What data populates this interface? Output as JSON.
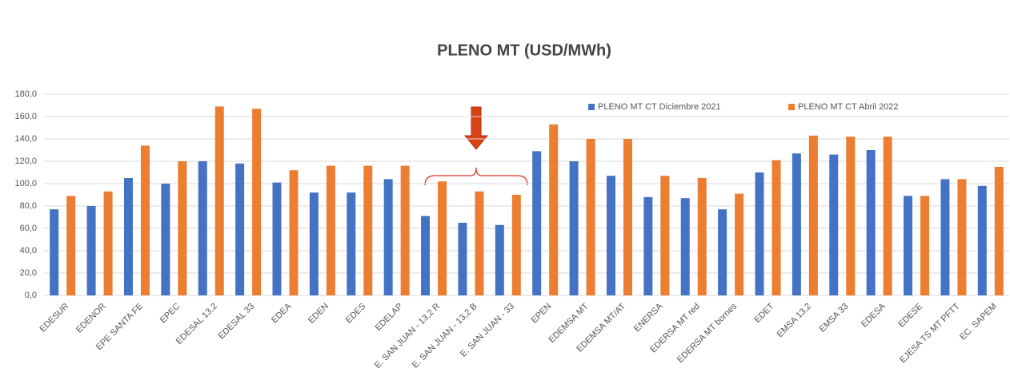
{
  "chart_data": {
    "type": "bar",
    "title": "PLENO MT (USD/MWh)",
    "categories": [
      "EDESUR",
      "EDENOR",
      "EPE SANTA FE",
      "EPEC",
      "EDESAL 13,2",
      "EDESAL 33",
      "EDEA",
      "EDEN",
      "EDES",
      "EDELAP",
      "E. SAN JUAN - 13,2 R",
      "E. SAN JUAN - 13,2 B",
      "E. SAN JUAN - 33",
      "EPEN",
      "EDEMSA MT",
      "EDEMSA MT/AT",
      "ENERSA",
      "EDERSA MT red",
      "EDERSA MT bornes",
      "EDET",
      "EMSA 13,2",
      "EMSA 33",
      "EDESA",
      "EDESE",
      "EJESA TS MT PFTT",
      "EC. SAPEM"
    ],
    "series": [
      {
        "name": "PLENO MT CT Diciembre 2021",
        "color": "#4472c4",
        "values": [
          77,
          80,
          105,
          100,
          120,
          118,
          101,
          92,
          92,
          104,
          71,
          65,
          63,
          129,
          120,
          107,
          88,
          87,
          77,
          110,
          127,
          126,
          130,
          89,
          104,
          98
        ]
      },
      {
        "name": "PLENO MT CT Abril 2022",
        "color": "#ed7d31",
        "values": [
          89,
          93,
          134,
          120,
          169,
          167,
          112,
          116,
          116,
          116,
          102,
          93,
          90,
          153,
          140,
          140,
          107,
          105,
          91,
          121,
          143,
          142,
          142,
          89,
          104,
          115
        ]
      }
    ],
    "ylim": [
      0,
      180
    ],
    "yticks": [
      {
        "value": 0,
        "label": "0,0"
      },
      {
        "value": 20,
        "label": "20,0"
      },
      {
        "value": 40,
        "label": "40,0"
      },
      {
        "value": 60,
        "label": "60,0"
      },
      {
        "value": 80,
        "label": "80,0"
      },
      {
        "value": 100,
        "label": "100,0"
      },
      {
        "value": 120,
        "label": "120,0"
      },
      {
        "value": 140,
        "label": "140,0"
      },
      {
        "value": 160,
        "label": "160,0"
      },
      {
        "value": 180,
        "label": "180,0"
      }
    ],
    "grid": true,
    "legend": "top-right"
  }
}
